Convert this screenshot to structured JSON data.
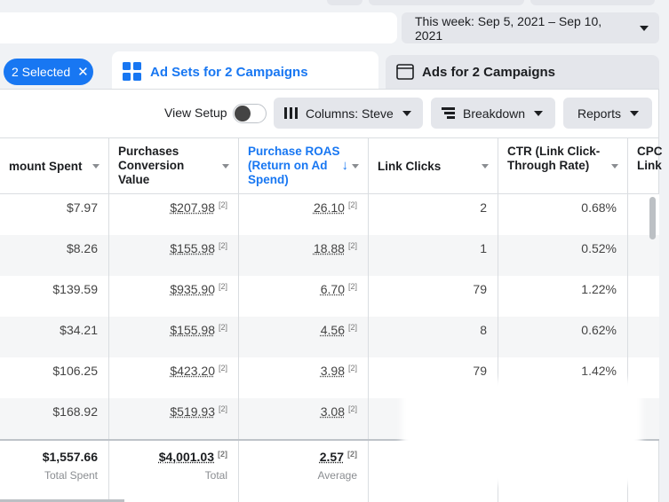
{
  "header": {
    "date_range": "This week: Sep 5, 2021 – Sep 10, 2021"
  },
  "selection": {
    "label": "2 Selected"
  },
  "tabs": [
    "Ad Sets for 2 Campaigns",
    "Ads for 2 Campaigns"
  ],
  "toolbar": {
    "view_setup": "View Setup",
    "columns": "Columns: Steve",
    "breakdown": "Breakdown",
    "reports": "Reports"
  },
  "table": {
    "columns": [
      "mount Spent",
      "Purchases Conversion Value",
      "Purchase ROAS (Return on Ad Spend)",
      "Link Clicks",
      "CTR (Link Click-Through Rate)",
      "CPC Link"
    ],
    "rows": [
      [
        "$7.97",
        {
          "text": "$207.98",
          "note": "[2]"
        },
        {
          "text": "26.10",
          "note": "[2]"
        },
        "2",
        "0.68%"
      ],
      [
        "$8.26",
        {
          "text": "$155.98",
          "note": "[2]"
        },
        {
          "text": "18.88",
          "note": "[2]"
        },
        "1",
        "0.52%"
      ],
      [
        "$139.59",
        {
          "text": "$935.90",
          "note": "[2]"
        },
        {
          "text": "6.70",
          "note": "[2]"
        },
        "79",
        "1.22%"
      ],
      [
        "$34.21",
        {
          "text": "$155.98",
          "note": "[2]"
        },
        {
          "text": "4.56",
          "note": "[2]"
        },
        "8",
        "0.62%"
      ],
      [
        "$106.25",
        {
          "text": "$423.20",
          "note": "[2]"
        },
        {
          "text": "3.98",
          "note": "[2]"
        },
        "79",
        "1.42%"
      ],
      [
        "$168.92",
        {
          "text": "$519.93",
          "note": "[2]"
        },
        {
          "text": "3.08",
          "note": "[2]"
        }
      ]
    ],
    "totals": [
      {
        "text": "$1,557.66",
        "sub": "Total Spent"
      },
      {
        "text": "$4,001.03",
        "note": "[2]",
        "sub": "Total"
      },
      {
        "text": "2.57",
        "note": "[2]",
        "sub": "Average"
      }
    ]
  }
}
